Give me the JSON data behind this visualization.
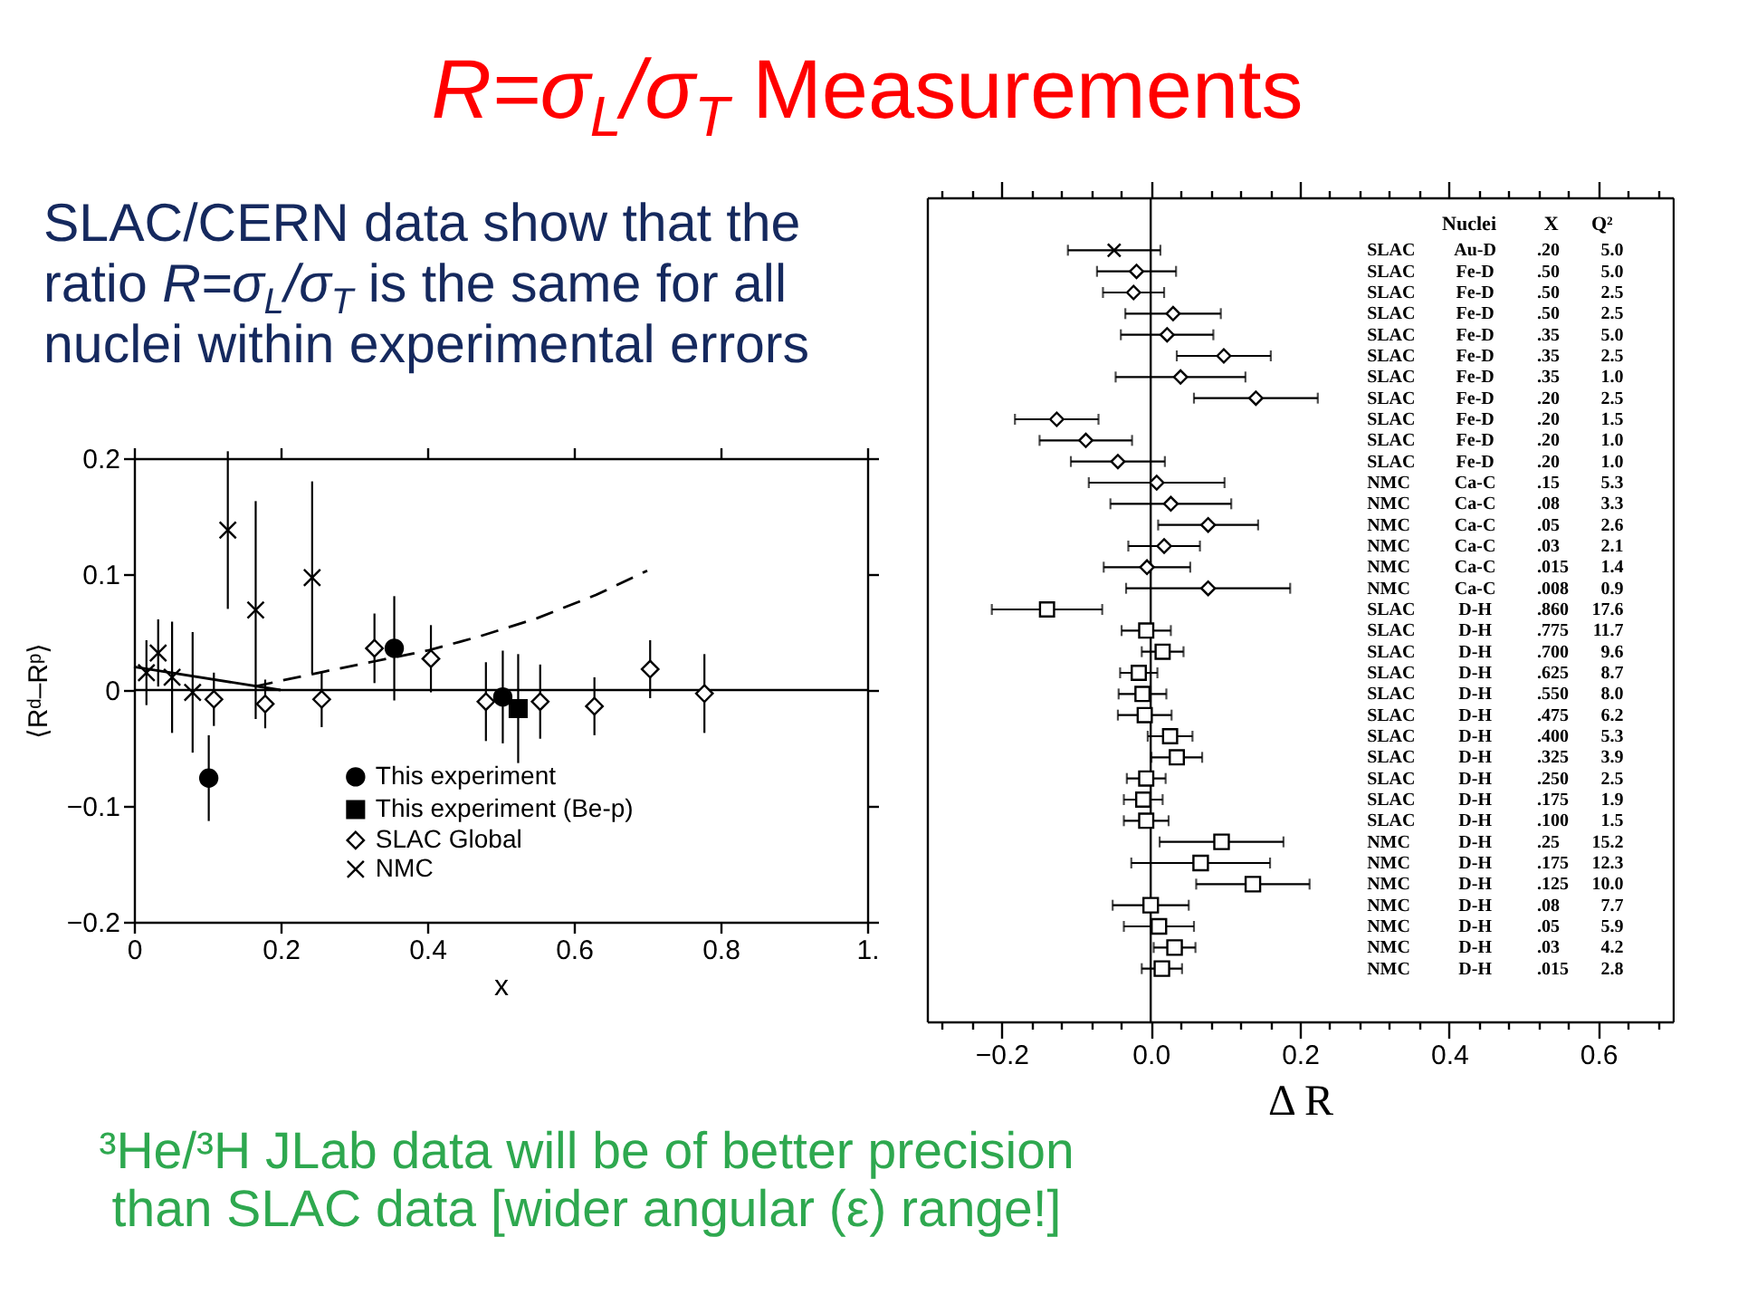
{
  "chart_data": [
    {
      "type": "other",
      "title": "R=σ$_{L}$/σ$_{T}$ Measurements",
      "annotations": [
        "SLAC/CERN data show that the\nratio R=σ$_{L}$/σ$_{T}$ is the same for all\nnuclei within experimental errors",
        "³He/³H JLab data will be of better precision\nthan SLAC data [wider angular (ε) range!]"
      ]
    },
    {
      "type": "scatter",
      "xlabel": "x",
      "ylabel": "⟨Rᵈ–Rᵖ⟩",
      "xlim": [
        0,
        1
      ],
      "xticks": [
        0,
        0.2,
        0.4,
        0.6,
        0.8,
        {
          "value": 1,
          "label": "1."
        }
      ],
      "ylim": [
        -0.2,
        0.2
      ],
      "yticks": [
        -0.2,
        -0.1,
        0,
        0.1,
        0.2
      ],
      "legend": "bottom",
      "ref_lines": [
        {
          "axis": "y",
          "value": 0
        }
      ],
      "series": [
        {
          "name": "This experiment",
          "color": "#000000",
          "marker": "circle",
          "x": [
            0.102,
            0.355,
            0.503
          ],
          "values": [
            -0.076,
            0.036,
            -0.006
          ],
          "errors": [
            0.037,
            0.045,
            0.04
          ]
        },
        {
          "name": "This experiment (Be-p)",
          "color": "#000000",
          "marker": "square",
          "x": [
            0.524
          ],
          "values": [
            -0.016
          ],
          "errors": [
            0.047
          ]
        },
        {
          "name": "SLAC Global",
          "color": "#000000",
          "marker": "diamond",
          "x": [
            0.109,
            0.179,
            0.256,
            0.328,
            0.405,
            0.48,
            0.554,
            0.628,
            0.704,
            0.778
          ],
          "values": [
            -0.008,
            -0.012,
            -0.008,
            0.036,
            0.027,
            -0.01,
            -0.01,
            -0.014,
            0.018,
            -0.003
          ],
          "errors": [
            0.023,
            0.021,
            0.024,
            0.03,
            0.029,
            0.034,
            0.032,
            0.025,
            0.025,
            0.034
          ]
        },
        {
          "name": "NMC",
          "color": "#000000",
          "marker": "cross",
          "x": [
            0.017,
            0.033,
            0.052,
            0.08,
            0.128,
            0.166,
            0.243
          ],
          "values": [
            0.015,
            0.032,
            0.011,
            -0.002,
            0.138,
            0.069,
            0.097
          ],
          "errors": [
            0.028,
            0.029,
            0.048,
            0.052,
            0.068,
            0.094,
            0.083
          ]
        },
        {
          "type": "line",
          "color": "#000000",
          "marker": "none",
          "line_style": "solid",
          "x": [
            0,
            0.2
          ],
          "values": [
            0.02,
            0
          ]
        },
        {
          "type": "line",
          "color": "#000000",
          "marker": "none",
          "line_style": "dashed",
          "x": [
            0.165,
            0.2,
            0.26,
            0.33,
            0.4,
            0.47,
            0.55,
            0.63,
            0.7
          ],
          "values": [
            0.003,
            0.008,
            0.016,
            0.025,
            0.034,
            0.046,
            0.062,
            0.082,
            0.103
          ]
        }
      ]
    },
    {
      "type": "scatter",
      "orientation": "horizontal",
      "xlabel": "Δ R",
      "xlim": [
        -0.3,
        0.7
      ],
      "xticks": [
        {
          "value": -0.28,
          "label": null
        },
        {
          "value": -0.24,
          "label": null
        },
        -0.2,
        {
          "value": -0.16,
          "label": null
        },
        {
          "value": -0.12,
          "label": null
        },
        {
          "value": -0.08,
          "label": null
        },
        {
          "value": -0.04,
          "label": null
        },
        {
          "value": 0,
          "label": "0.0"
        },
        {
          "value": 0.04,
          "label": null
        },
        {
          "value": 0.08,
          "label": null
        },
        {
          "value": 0.12,
          "label": null
        },
        {
          "value": 0.16,
          "label": null
        },
        0.2,
        {
          "value": 0.24,
          "label": null
        },
        {
          "value": 0.28,
          "label": null
        },
        {
          "value": 0.32,
          "label": null
        },
        {
          "value": 0.36,
          "label": null
        },
        0.4,
        {
          "value": 0.44,
          "label": null
        },
        {
          "value": 0.48,
          "label": null
        },
        {
          "value": 0.52,
          "label": null
        },
        {
          "value": 0.56,
          "label": null
        },
        0.6,
        {
          "value": 0.64,
          "label": null
        },
        {
          "value": 0.68,
          "label": null
        }
      ],
      "categories": [
        null,
        null,
        "SLAC Au-D .20 5.0",
        "SLAC Fe-D .50 5.0",
        "SLAC Fe-D .50 2.5",
        "SLAC Fe-D .50 2.5",
        "SLAC Fe-D .35 5.0",
        "SLAC Fe-D .35 2.5",
        "SLAC Fe-D .35 1.0",
        "SLAC Fe-D .20 2.5",
        "SLAC Fe-D .20 1.5",
        "SLAC Fe-D .20 1.0",
        "SLAC Fe-D .20 1.0",
        "NMC Ca-C .15 5.3",
        "NMC Ca-C .08 3.3",
        "NMC Ca-C .05 2.6",
        "NMC Ca-C .03 2.1",
        "NMC Ca-C .015 1.4",
        "NMC Ca-C .008 0.9",
        "SLAC D-H .860 17.6",
        "SLAC D-H .775 11.7",
        "SLAC D-H .700 9.6",
        "SLAC D-H .625 8.7",
        "SLAC D-H .550 8.0",
        "SLAC D-H .475 6.2",
        "SLAC D-H .400 5.3",
        "SLAC D-H .325 3.9",
        "SLAC D-H .250 2.5",
        "SLAC D-H .175 1.9",
        "SLAC D-H .100 1.5",
        "NMC D-H .25 15.2",
        "NMC D-H .175 12.3",
        "NMC D-H .125 10.0",
        "NMC D-H .08 7.7",
        "NMC D-H .05 5.9",
        "NMC D-H .03 4.2",
        "NMC D-H .015 2.8",
        null,
        null
      ],
      "annotations": [
        "Nuclei",
        "X",
        "Q²"
      ],
      "ref_lines": [
        {
          "axis": "x",
          "value": 0
        }
      ],
      "series": [
        {
          "color": "#000000",
          "marker": "cross",
          "values": [
            null,
            null,
            -0.049,
            null,
            null,
            null,
            null,
            null,
            null,
            null,
            null,
            null,
            null,
            null,
            null,
            null,
            null,
            null,
            null,
            null,
            null,
            null,
            null,
            null,
            null,
            null,
            null,
            null,
            null,
            null,
            null,
            null,
            null,
            null,
            null,
            null,
            null,
            null,
            null
          ],
          "errors": [
            null,
            null,
            0.062,
            null,
            null,
            null,
            null,
            null,
            null,
            null,
            null,
            null,
            null,
            null,
            null,
            null,
            null,
            null,
            null,
            null,
            null,
            null,
            null,
            null,
            null,
            null,
            null,
            null,
            null,
            null,
            null,
            null,
            null,
            null,
            null,
            null,
            null,
            null,
            null
          ]
        },
        {
          "color": "#000000",
          "marker": "diamond",
          "values": [
            null,
            null,
            null,
            -0.019,
            -0.023,
            0.03,
            0.022,
            0.098,
            0.04,
            0.141,
            -0.126,
            -0.087,
            -0.044,
            null,
            null,
            null,
            null,
            null,
            null,
            null,
            null,
            null,
            null,
            null,
            null,
            null,
            null,
            null,
            null,
            null,
            null,
            null,
            null,
            null,
            null,
            null,
            null,
            null,
            null
          ],
          "errors": [
            null,
            null,
            null,
            0.053,
            0.041,
            0.064,
            0.062,
            0.063,
            0.087,
            0.083,
            0.056,
            0.062,
            0.063,
            null,
            null,
            null,
            null,
            null,
            null,
            null,
            null,
            null,
            null,
            null,
            null,
            null,
            null,
            null,
            null,
            null,
            null,
            null,
            null,
            null,
            null,
            null,
            null,
            null,
            null
          ]
        },
        {
          "color": "#000000",
          "marker": "diamond",
          "values": [
            null,
            null,
            null,
            null,
            null,
            null,
            null,
            null,
            null,
            null,
            null,
            null,
            null,
            0.008,
            0.027,
            0.077,
            0.018,
            -0.005,
            0.077,
            null,
            null,
            null,
            null,
            null,
            null,
            null,
            null,
            null,
            null,
            null,
            null,
            null,
            null,
            null,
            null,
            null,
            null,
            null,
            null
          ],
          "errors": [
            null,
            null,
            null,
            null,
            null,
            null,
            null,
            null,
            null,
            null,
            null,
            null,
            null,
            0.091,
            0.081,
            0.067,
            0.048,
            0.058,
            0.11,
            null,
            null,
            null,
            null,
            null,
            null,
            null,
            null,
            null,
            null,
            null,
            null,
            null,
            null,
            null,
            null,
            null,
            null,
            null,
            null
          ]
        },
        {
          "color": "#000000",
          "marker": "square",
          "values": [
            null,
            null,
            null,
            null,
            null,
            null,
            null,
            null,
            null,
            null,
            null,
            null,
            null,
            null,
            null,
            null,
            null,
            null,
            null,
            -0.139,
            -0.006,
            0.016,
            -0.016,
            -0.011,
            -0.008,
            0.026,
            0.035,
            -0.006,
            -0.01,
            -0.006,
            null,
            null,
            null,
            null,
            null,
            null,
            null,
            null,
            null
          ],
          "errors": [
            null,
            null,
            null,
            null,
            null,
            null,
            null,
            null,
            null,
            null,
            null,
            null,
            null,
            null,
            null,
            null,
            null,
            null,
            null,
            0.074,
            0.033,
            0.028,
            0.025,
            0.032,
            0.036,
            0.03,
            0.034,
            0.026,
            0.026,
            0.03,
            null,
            null,
            null,
            null,
            null,
            null,
            null,
            null,
            null
          ]
        },
        {
          "color": "#000000",
          "marker": "square",
          "values": [
            null,
            null,
            null,
            null,
            null,
            null,
            null,
            null,
            null,
            null,
            null,
            null,
            null,
            null,
            null,
            null,
            null,
            null,
            null,
            null,
            null,
            null,
            null,
            null,
            null,
            null,
            null,
            null,
            null,
            null,
            0.095,
            0.067,
            0.137,
            0,
            0.011,
            0.032,
            0.015,
            null,
            null
          ],
          "errors": [
            null,
            null,
            null,
            null,
            null,
            null,
            null,
            null,
            null,
            null,
            null,
            null,
            null,
            null,
            null,
            null,
            null,
            null,
            null,
            null,
            null,
            null,
            null,
            null,
            null,
            null,
            null,
            null,
            null,
            null,
            0.083,
            0.093,
            0.076,
            0.051,
            0.047,
            0.028,
            0.027,
            null,
            null
          ]
        }
      ]
    }
  ]
}
